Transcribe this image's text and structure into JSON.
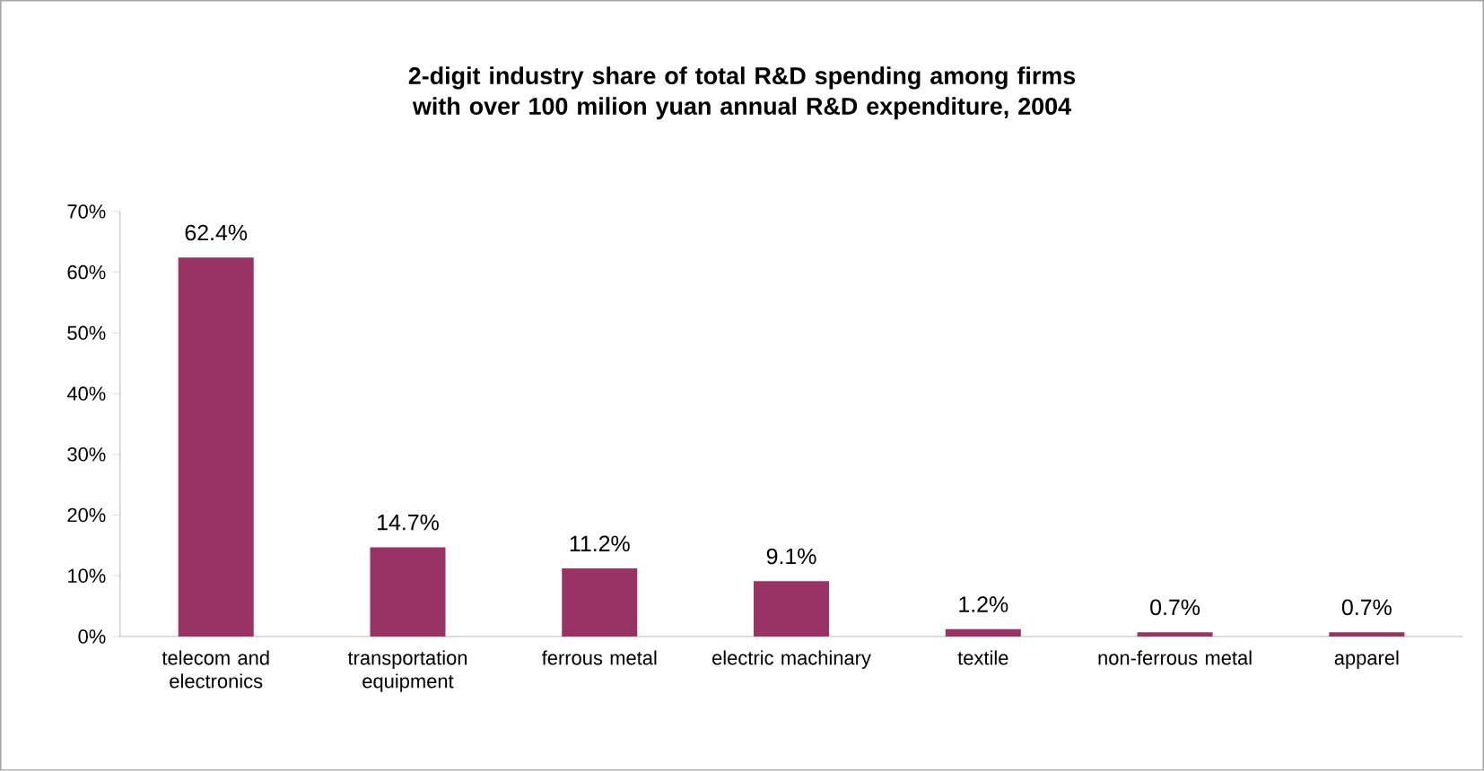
{
  "chart_data": {
    "type": "bar",
    "title": "2-digit industry share of total R&D spending  among firms with over 100 milion yuan annual R&D expenditure, 2004",
    "categories": [
      "telecom and electronics",
      "transportation equipment",
      "ferrous metal",
      "electric machinary",
      "textile",
      "non-ferrous metal",
      "apparel"
    ],
    "values": [
      62.4,
      14.7,
      11.2,
      9.1,
      1.2,
      0.7,
      0.7
    ],
    "value_labels": [
      "62.4%",
      "14.7%",
      "11.2%",
      "9.1%",
      "1.2%",
      "0.7%",
      "0.7%"
    ],
    "color": "#993366",
    "ylim": [
      0,
      70
    ],
    "yticks": [
      {
        "value": 0,
        "label": "0%"
      },
      {
        "value": 10,
        "label": "10%"
      },
      {
        "value": 20,
        "label": "20%"
      },
      {
        "value": 30,
        "label": "30%"
      },
      {
        "value": 40,
        "label": "40%"
      },
      {
        "value": 50,
        "label": "50%"
      },
      {
        "value": 60,
        "label": "60%"
      },
      {
        "value": 70,
        "label": "70%"
      }
    ],
    "grid": false
  }
}
